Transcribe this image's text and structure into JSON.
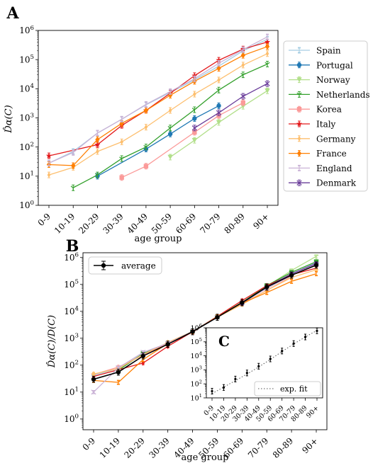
{
  "panelA": {
    "label": "A",
    "xlabel": "age group",
    "ylabel": "D̂α(C)",
    "categories": [
      "0-9",
      "10-19",
      "20-29",
      "30-39",
      "40-49",
      "50-59",
      "60-69",
      "70-79",
      "80-89",
      "90+"
    ],
    "yticks": [
      "10^0",
      "10^1",
      "10^2",
      "10^3",
      "10^4",
      "10^5",
      "10^6"
    ]
  },
  "panelB": {
    "label": "B",
    "xlabel": "age group",
    "ylabel": "D̂α(C)/D(C)",
    "legend": "average",
    "categories": [
      "0-9",
      "10-19",
      "20-29",
      "30-39",
      "40-49",
      "50-59",
      "60-69",
      "70-79",
      "80-89",
      "90+"
    ],
    "yticks": [
      "10^0",
      "10^1",
      "10^2",
      "10^3",
      "10^4",
      "10^5",
      "10^6"
    ]
  },
  "panelC": {
    "label": "C",
    "legend": "exp. fit",
    "categories": [
      "0-9",
      "10-19",
      "20-29",
      "30-39",
      "40-49",
      "50-59",
      "60-69",
      "70-79",
      "80-89",
      "90+"
    ],
    "yticks": [
      "10^1",
      "10^2",
      "10^3",
      "10^4",
      "10^5",
      "10^6"
    ]
  },
  "chart_data": [
    {
      "type": "line",
      "panel": "A",
      "title": "",
      "xlabel": "age group",
      "ylabel": "D̂α(C)",
      "yscale": "log",
      "ylim": [
        1,
        1000000
      ],
      "categories": [
        "0-9",
        "10-19",
        "20-29",
        "30-39",
        "40-49",
        "50-59",
        "60-69",
        "70-79",
        "80-89",
        "90+"
      ],
      "legend_position": "right",
      "series": [
        {
          "name": "Spain",
          "color": "#a6cee3",
          "marker": "line",
          "values": [
            28,
            70,
            300,
            900,
            2800,
            7500,
            20000,
            60000,
            200000,
            500000
          ]
        },
        {
          "name": "Portugal",
          "color": "#1f78b4",
          "marker": "circle",
          "values": [
            null,
            null,
            10,
            null,
            85,
            280,
            950,
            2600,
            null,
            null
          ]
        },
        {
          "name": "Norway",
          "color": "#b2df8a",
          "marker": "triangle-down",
          "values": [
            null,
            null,
            null,
            null,
            null,
            45,
            170,
            700,
            2500,
            8500
          ]
        },
        {
          "name": "Netherlands",
          "color": "#33a02c",
          "marker": "tri-down",
          "values": [
            null,
            4,
            11,
            40,
            100,
            450,
            1900,
            9000,
            30000,
            70000
          ]
        },
        {
          "name": "Korea",
          "color": "#fb9a99",
          "marker": "square",
          "values": [
            null,
            null,
            null,
            9,
            22,
            null,
            320,
            1200,
            3300,
            null
          ]
        },
        {
          "name": "Italy",
          "color": "#e31a1c",
          "marker": "star",
          "values": [
            50,
            null,
            120,
            550,
            1800,
            7000,
            28000,
            95000,
            230000,
            400000
          ]
        },
        {
          "name": "Germany",
          "color": "#fdbf6f",
          "marker": "diamond-thin",
          "values": [
            11,
            20,
            70,
            150,
            480,
            1800,
            6500,
            20000,
            65000,
            160000
          ]
        },
        {
          "name": "France",
          "color": "#ff7f00",
          "marker": "diamond",
          "values": [
            25,
            23,
            180,
            650,
            1800,
            6000,
            18000,
            50000,
            140000,
            280000
          ]
        },
        {
          "name": "England",
          "color": "#cab2d6",
          "marker": "line",
          "values": [
            28,
            65,
            300,
            900,
            2900,
            8000,
            22000,
            75000,
            220000,
            600000
          ]
        },
        {
          "name": "Denmark",
          "color": "#6a3d9a",
          "marker": "x",
          "values": [
            null,
            null,
            null,
            null,
            null,
            null,
            450,
            1500,
            5500,
            15000
          ]
        }
      ]
    },
    {
      "type": "line",
      "panel": "B",
      "title": "",
      "xlabel": "age group",
      "ylabel": "D̂α(C)/D(C)",
      "yscale": "log",
      "ylim": [
        0.4,
        1500000
      ],
      "categories": [
        "0-9",
        "10-19",
        "20-29",
        "30-39",
        "40-49",
        "50-59",
        "60-69",
        "70-79",
        "80-89",
        "90+"
      ],
      "legend_position": "top-left",
      "series": [
        {
          "name": "average",
          "color": "#000000",
          "marker": "circle",
          "values": [
            30,
            55,
            220,
            600,
            1750,
            6000,
            21000,
            80000,
            220000,
            520000
          ]
        },
        {
          "color": "#a6cee3",
          "values": [
            42,
            75,
            270,
            650,
            1800,
            6200,
            22000,
            85000,
            240000,
            650000
          ]
        },
        {
          "color": "#1f78b4",
          "values": [
            null,
            null,
            null,
            null,
            1700,
            6000,
            20000,
            75000,
            null,
            null
          ]
        },
        {
          "color": "#b2df8a",
          "values": [
            null,
            null,
            null,
            null,
            null,
            6200,
            22000,
            85000,
            330000,
            1100000
          ]
        },
        {
          "color": "#33a02c",
          "values": [
            null,
            65,
            270,
            620,
            1800,
            6200,
            21000,
            90000,
            280000,
            700000
          ]
        },
        {
          "color": "#fb9a99",
          "values": [
            45,
            85,
            null,
            650,
            1650,
            6500,
            19000,
            60000,
            200000,
            null
          ]
        },
        {
          "color": "#e31a1c",
          "values": [
            38,
            null,
            120,
            500,
            1750,
            6500,
            25000,
            90000,
            230000,
            400000
          ]
        },
        {
          "color": "#fdbf6f",
          "values": [
            47,
            75,
            250,
            700,
            1800,
            6000,
            18000,
            60000,
            180000,
            350000
          ]
        },
        {
          "color": "#ff7f00",
          "values": [
            27,
            23,
            160,
            650,
            1750,
            6300,
            20000,
            50000,
            130000,
            250000
          ]
        },
        {
          "color": "#cab2d6",
          "values": [
            10,
            80,
            300,
            650,
            1800,
            6000,
            21000,
            70000,
            220000,
            550000
          ]
        },
        {
          "color": "#6a3d9a",
          "values": [
            null,
            null,
            null,
            null,
            null,
            null,
            20000,
            80000,
            250000,
            600000
          ]
        }
      ]
    },
    {
      "type": "scatter",
      "panel": "C",
      "title": "",
      "yscale": "log",
      "ylim": [
        10,
        1000000
      ],
      "categories": [
        "0-9",
        "10-19",
        "20-29",
        "30-39",
        "40-49",
        "50-59",
        "60-69",
        "70-79",
        "80-89",
        "90+"
      ],
      "legend_position": "bottom-right",
      "series": [
        {
          "name": "average",
          "color": "#000000",
          "values": [
            30,
            55,
            220,
            600,
            1800,
            6000,
            22000,
            75000,
            220000,
            600000
          ]
        },
        {
          "name": "exp. fit",
          "color": "#555555",
          "style": "dotted",
          "values": [
            20,
            58,
            170,
            500,
            1600,
            5500,
            20000,
            70000,
            220000,
            650000
          ]
        }
      ]
    }
  ]
}
